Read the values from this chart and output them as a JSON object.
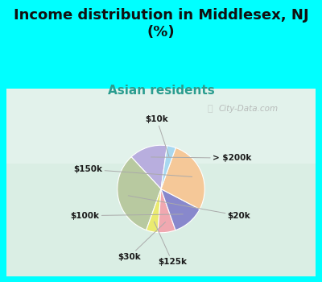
{
  "title": "Income distribution in Middlesex, NJ\n(%)",
  "subtitle": "Asian residents",
  "title_bg_color": "#00FFFF",
  "chart_bg_top": "#d8efe8",
  "chart_bg_bottom": "#c8e8d0",
  "labels": [
    "> $200k",
    "$20k",
    "$125k",
    "$30k",
    "$100k",
    "$150k",
    "$10k"
  ],
  "sizes": [
    13,
    30,
    4,
    6,
    11,
    25,
    3
  ],
  "colors": [
    "#b8aede",
    "#b8c9a0",
    "#eaea70",
    "#f0a8b0",
    "#8888cc",
    "#f5c898",
    "#a8d8f0"
  ],
  "startangle": 82,
  "label_color": "#1a1a1a",
  "title_color": "#111111",
  "subtitle_color": "#2a9d8f",
  "watermark": "City-Data.com",
  "title_fontsize": 13,
  "subtitle_fontsize": 11,
  "label_fontsize": 7.5
}
